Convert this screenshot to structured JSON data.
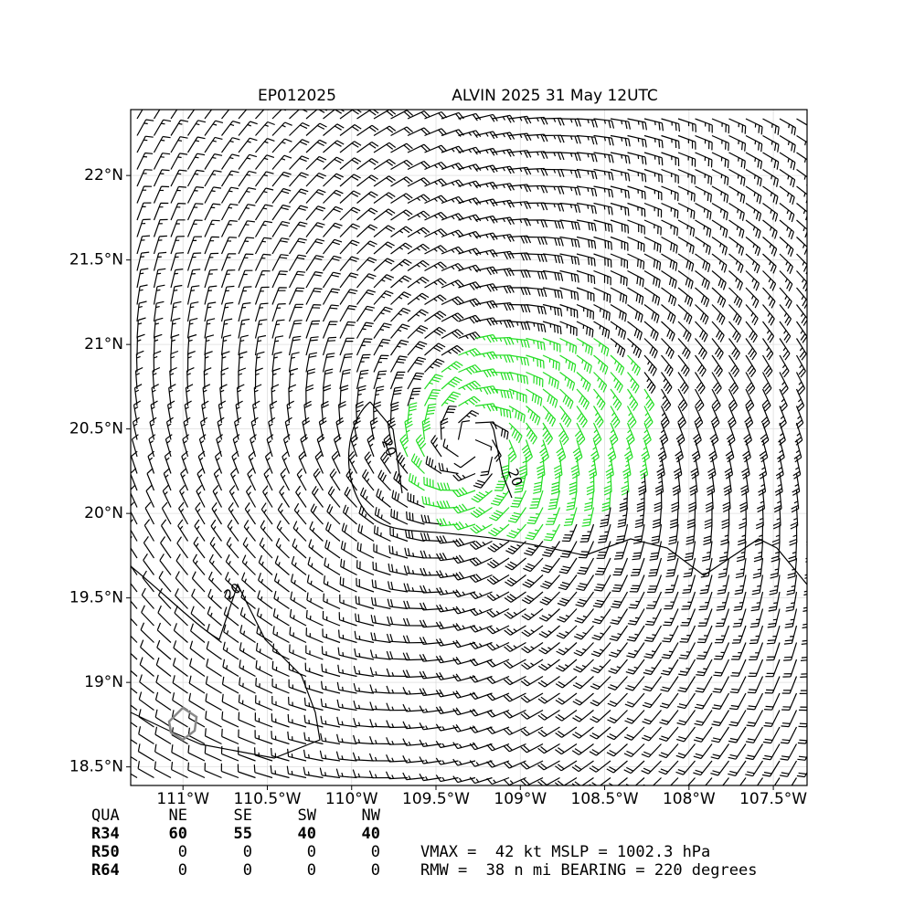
{
  "chart_data": {
    "type": "wind-barb-map",
    "title_left": "EP012025",
    "title_right": "ALVIN 2025 31 May 12UTC",
    "xlim": [
      -111.31,
      -107.3
    ],
    "ylim": [
      18.39,
      22.39
    ],
    "xticks": [
      {
        "value": -111,
        "label": "111°W"
      },
      {
        "value": -110.5,
        "label": "110.5°W"
      },
      {
        "value": -110,
        "label": "110°W"
      },
      {
        "value": -109.5,
        "label": "109.5°W"
      },
      {
        "value": -109,
        "label": "109°W"
      },
      {
        "value": -108.5,
        "label": "108.5°W"
      },
      {
        "value": -108,
        "label": "108°W"
      },
      {
        "value": -107.5,
        "label": "107.5°W"
      }
    ],
    "yticks": [
      {
        "value": 18.5,
        "label": "18.5°N"
      },
      {
        "value": 19,
        "label": "19°N"
      },
      {
        "value": 19.5,
        "label": "19.5°N"
      },
      {
        "value": 20,
        "label": "20°N"
      },
      {
        "value": 20.5,
        "label": "20.5°N"
      },
      {
        "value": 21,
        "label": "21°N"
      },
      {
        "value": 21.5,
        "label": "21.5°N"
      },
      {
        "value": 22,
        "label": "22°N"
      }
    ],
    "grid": true,
    "contour_labels": [
      "20",
      "20",
      "20"
    ]
  },
  "table": {
    "header": [
      "QUA",
      "NE",
      "SE",
      "SW",
      "NW"
    ],
    "rows": [
      [
        "R34",
        60,
        55,
        40,
        40
      ],
      [
        "R50",
        0,
        0,
        0,
        0
      ],
      [
        "R64",
        0,
        0,
        0,
        0
      ]
    ]
  },
  "stats": [
    "VMAX =  42 kt MSLP = 1002.3 hPa",
    "RMW =  38 n mi BEARING = 220 degrees"
  ]
}
